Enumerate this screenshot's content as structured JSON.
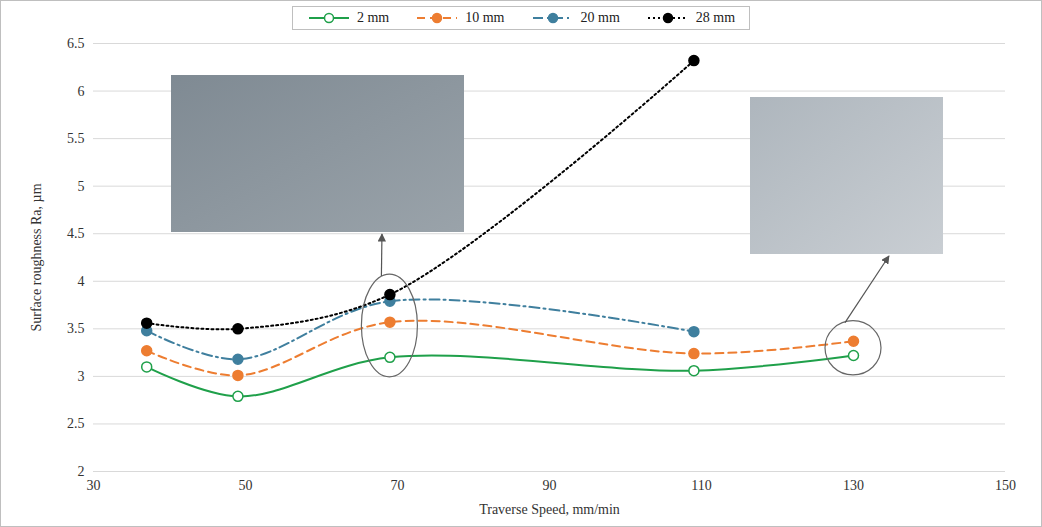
{
  "chart_data": {
    "type": "line",
    "x_label": "Traverse Speed, mm/min",
    "y_label": "Surface roughness Ra, µm",
    "x": [
      37,
      49,
      69,
      109,
      130
    ],
    "series": [
      {
        "name": "2 mm",
        "color": "#1fa04a",
        "line_style": "solid",
        "marker": "open_circle",
        "values": [
          3.1,
          2.79,
          3.2,
          3.06,
          3.22
        ]
      },
      {
        "name": "10 mm",
        "color": "#ed7d31",
        "line_style": "dashed",
        "marker": "circle",
        "values": [
          3.27,
          3.01,
          3.57,
          3.24,
          3.37
        ]
      },
      {
        "name": "20 mm",
        "color": "#3f7f9e",
        "line_style": "dashdot",
        "marker": "circle",
        "values": [
          3.48,
          3.18,
          3.79,
          3.47,
          null
        ]
      },
      {
        "name": "28 mm",
        "color": "#000000",
        "line_style": "dotted",
        "marker": "circle",
        "values": [
          3.56,
          3.5,
          3.86,
          6.32,
          null
        ]
      }
    ],
    "xlim": [
      30,
      150
    ],
    "xticks": [
      30,
      50,
      70,
      90,
      110,
      130,
      150
    ],
    "ylim": [
      2,
      6.5
    ],
    "yticks": [
      2,
      2.5,
      3,
      3.5,
      4,
      4.5,
      5,
      5.5,
      6,
      6.5
    ],
    "grid": "y",
    "legend": "top"
  }
}
